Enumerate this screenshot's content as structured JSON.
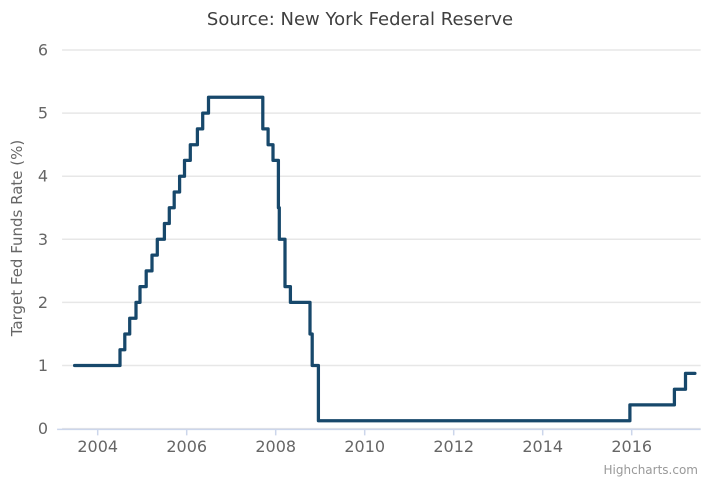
{
  "chart": {
    "title": "Source: New York Federal Reserve",
    "credits": "Highcharts.com"
  },
  "chart_data": {
    "type": "line",
    "step": true,
    "title": "Source: New York Federal Reserve",
    "xlabel": "",
    "ylabel": "Target Fed Funds Rate (%)",
    "xlim": [
      2003.2,
      2017.55
    ],
    "ylim": [
      0,
      6
    ],
    "xticks": [
      2004,
      2006,
      2008,
      2010,
      2012,
      2014,
      2016
    ],
    "yticks": [
      0,
      1,
      2,
      3,
      4,
      5,
      6
    ],
    "grid": "horizontal-only",
    "legend_position": "none",
    "colors": {
      "line": "#17486b",
      "gridline": "#e7e7e7",
      "axis_line": "#ccd6eb",
      "tick_label": "#666666",
      "title_text": "#3f3f3f",
      "credits_text": "#999999"
    },
    "series": [
      {
        "name": "Target Fed Funds Rate (%)",
        "color": "#17486b",
        "points_note": "each point = [decimal year of target change, new target rate %], drawn as steps",
        "points": [
          [
            2003.48,
            1.0
          ],
          [
            2004.5,
            1.25
          ],
          [
            2004.61,
            1.5
          ],
          [
            2004.72,
            1.75
          ],
          [
            2004.86,
            2.0
          ],
          [
            2004.95,
            2.25
          ],
          [
            2005.09,
            2.5
          ],
          [
            2005.22,
            2.75
          ],
          [
            2005.34,
            3.0
          ],
          [
            2005.5,
            3.25
          ],
          [
            2005.61,
            3.5
          ],
          [
            2005.72,
            3.75
          ],
          [
            2005.84,
            4.0
          ],
          [
            2005.95,
            4.25
          ],
          [
            2006.08,
            4.5
          ],
          [
            2006.24,
            4.75
          ],
          [
            2006.36,
            5.0
          ],
          [
            2006.49,
            5.25
          ],
          [
            2007.71,
            4.75
          ],
          [
            2007.83,
            4.5
          ],
          [
            2007.94,
            4.25
          ],
          [
            2008.06,
            3.5
          ],
          [
            2008.08,
            3.0
          ],
          [
            2008.21,
            2.25
          ],
          [
            2008.33,
            2.0
          ],
          [
            2008.77,
            1.5
          ],
          [
            2008.82,
            1.0
          ],
          [
            2008.96,
            0.125
          ],
          [
            2015.96,
            0.375
          ],
          [
            2016.96,
            0.625
          ],
          [
            2017.21,
            0.875
          ],
          [
            2017.42,
            0.875
          ]
        ]
      }
    ]
  }
}
